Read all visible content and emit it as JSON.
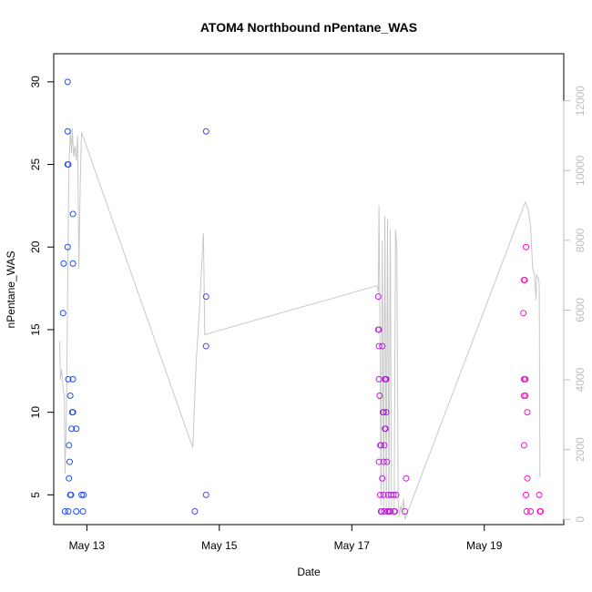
{
  "chart_data": {
    "type": "scatter",
    "title": "ATOM4 Northbound nPentane_WAS",
    "xlabel": "Date",
    "ylabel": "nPentane_WAS",
    "xlim_days": [
      12.5,
      20.2
    ],
    "ylim": [
      3.2,
      31.7
    ],
    "y2lim": [
      -150,
      13350
    ],
    "x_ticks": [
      {
        "value": 13,
        "label": "May 13"
      },
      {
        "value": 15,
        "label": "May 15"
      },
      {
        "value": 17,
        "label": "May 17"
      },
      {
        "value": 19,
        "label": "May 19"
      }
    ],
    "y_ticks": [
      5,
      10,
      15,
      20,
      25,
      30
    ],
    "y2_ticks": [
      0,
      2000,
      4000,
      6000,
      8000,
      10000,
      12000
    ],
    "colors": {
      "early": "#1f4ff5",
      "late": "#ff10c8",
      "line": "#c8c8c8"
    },
    "points": [
      {
        "x": 12.95,
        "y": 5
      },
      {
        "x": 12.64,
        "y": 16
      },
      {
        "x": 12.65,
        "y": 19
      },
      {
        "x": 12.67,
        "y": 4
      },
      {
        "x": 12.71,
        "y": 30
      },
      {
        "x": 12.71,
        "y": 27
      },
      {
        "x": 12.71,
        "y": 25
      },
      {
        "x": 12.72,
        "y": 25
      },
      {
        "x": 12.71,
        "y": 20
      },
      {
        "x": 12.72,
        "y": 12
      },
      {
        "x": 12.73,
        "y": 8
      },
      {
        "x": 12.73,
        "y": 6
      },
      {
        "x": 12.72,
        "y": 4
      },
      {
        "x": 12.74,
        "y": 7
      },
      {
        "x": 12.75,
        "y": 11
      },
      {
        "x": 12.75,
        "y": 5
      },
      {
        "x": 12.76,
        "y": 5
      },
      {
        "x": 12.77,
        "y": 9
      },
      {
        "x": 12.78,
        "y": 10
      },
      {
        "x": 12.79,
        "y": 10
      },
      {
        "x": 12.79,
        "y": 12
      },
      {
        "x": 12.79,
        "y": 22
      },
      {
        "x": 12.79,
        "y": 19
      },
      {
        "x": 12.84,
        "y": 9
      },
      {
        "x": 12.84,
        "y": 4
      },
      {
        "x": 12.92,
        "y": 5
      },
      {
        "x": 12.94,
        "y": 4
      },
      {
        "x": 14.63,
        "y": 4
      },
      {
        "x": 14.8,
        "y": 27
      },
      {
        "x": 14.8,
        "y": 17
      },
      {
        "x": 14.8,
        "y": 14
      },
      {
        "x": 14.8,
        "y": 5
      },
      {
        "x": 17.4,
        "y": 17
      },
      {
        "x": 17.4,
        "y": 15
      },
      {
        "x": 17.41,
        "y": 15
      },
      {
        "x": 17.41,
        "y": 14
      },
      {
        "x": 17.46,
        "y": 14
      },
      {
        "x": 17.41,
        "y": 12
      },
      {
        "x": 17.42,
        "y": 11
      },
      {
        "x": 17.41,
        "y": 7
      },
      {
        "x": 17.43,
        "y": 8
      },
      {
        "x": 17.44,
        "y": 8
      },
      {
        "x": 17.43,
        "y": 5
      },
      {
        "x": 17.44,
        "y": 4
      },
      {
        "x": 17.45,
        "y": 4
      },
      {
        "x": 17.46,
        "y": 6
      },
      {
        "x": 17.47,
        "y": 10
      },
      {
        "x": 17.48,
        "y": 10
      },
      {
        "x": 17.48,
        "y": 7
      },
      {
        "x": 17.48,
        "y": 5
      },
      {
        "x": 17.49,
        "y": 4
      },
      {
        "x": 17.5,
        "y": 9
      },
      {
        "x": 17.51,
        "y": 9
      },
      {
        "x": 17.49,
        "y": 8
      },
      {
        "x": 17.5,
        "y": 12
      },
      {
        "x": 17.51,
        "y": 12
      },
      {
        "x": 17.52,
        "y": 12
      },
      {
        "x": 17.52,
        "y": 10
      },
      {
        "x": 17.53,
        "y": 7
      },
      {
        "x": 17.54,
        "y": 4
      },
      {
        "x": 17.55,
        "y": 5
      },
      {
        "x": 17.56,
        "y": 4
      },
      {
        "x": 17.57,
        "y": 4
      },
      {
        "x": 17.58,
        "y": 4
      },
      {
        "x": 17.59,
        "y": 5
      },
      {
        "x": 17.63,
        "y": 5
      },
      {
        "x": 17.64,
        "y": 4
      },
      {
        "x": 17.65,
        "y": 4
      },
      {
        "x": 17.67,
        "y": 5
      },
      {
        "x": 17.8,
        "y": 4
      },
      {
        "x": 17.82,
        "y": 6
      },
      {
        "x": 19.59,
        "y": 16
      },
      {
        "x": 19.6,
        "y": 18
      },
      {
        "x": 19.61,
        "y": 18
      },
      {
        "x": 19.63,
        "y": 20
      },
      {
        "x": 19.6,
        "y": 12
      },
      {
        "x": 19.61,
        "y": 12
      },
      {
        "x": 19.62,
        "y": 12
      },
      {
        "x": 19.6,
        "y": 11
      },
      {
        "x": 19.62,
        "y": 11
      },
      {
        "x": 19.6,
        "y": 8
      },
      {
        "x": 19.63,
        "y": 5
      },
      {
        "x": 19.65,
        "y": 6
      },
      {
        "x": 19.64,
        "y": 4
      },
      {
        "x": 19.65,
        "y": 10
      },
      {
        "x": 19.7,
        "y": 4
      },
      {
        "x": 19.83,
        "y": 5
      },
      {
        "x": 19.84,
        "y": 4
      },
      {
        "x": 19.85,
        "y": 4
      }
    ],
    "line_series_y2": [
      [
        12.59,
        5100
      ],
      [
        12.6,
        4000
      ],
      [
        12.62,
        4300
      ],
      [
        12.64,
        3800
      ],
      [
        12.66,
        3500
      ],
      [
        12.67,
        1300
      ],
      [
        12.69,
        3000
      ],
      [
        12.7,
        4500
      ],
      [
        12.72,
        8500
      ],
      [
        12.73,
        10000
      ],
      [
        12.75,
        11200
      ],
      [
        12.77,
        10500
      ],
      [
        12.78,
        11200
      ],
      [
        12.8,
        10400
      ],
      [
        12.82,
        10700
      ],
      [
        12.84,
        10300
      ],
      [
        12.86,
        11000
      ],
      [
        12.88,
        7200
      ],
      [
        12.9,
        9600
      ],
      [
        12.92,
        11100
      ],
      [
        14.6,
        2050
      ],
      [
        14.65,
        4500
      ],
      [
        14.7,
        6000
      ],
      [
        14.74,
        7500
      ],
      [
        14.76,
        8200
      ],
      [
        14.78,
        5300
      ],
      [
        17.38,
        6700
      ],
      [
        17.4,
        6500
      ],
      [
        17.41,
        9000
      ],
      [
        17.42,
        7000
      ],
      [
        17.44,
        400
      ],
      [
        17.46,
        8000
      ],
      [
        17.48,
        300
      ],
      [
        17.5,
        8700
      ],
      [
        17.52,
        300
      ],
      [
        17.54,
        8600
      ],
      [
        17.56,
        200
      ],
      [
        17.58,
        8300
      ],
      [
        17.6,
        200
      ],
      [
        17.62,
        300
      ],
      [
        17.64,
        100
      ],
      [
        17.66,
        8300
      ],
      [
        17.68,
        7800
      ],
      [
        17.7,
        500
      ],
      [
        17.72,
        100
      ],
      [
        17.74,
        400
      ],
      [
        17.76,
        200
      ],
      [
        17.78,
        600
      ],
      [
        17.8,
        0
      ],
      [
        19.62,
        9100
      ],
      [
        19.66,
        8900
      ],
      [
        19.7,
        8400
      ],
      [
        19.73,
        7200
      ],
      [
        19.76,
        7000
      ],
      [
        19.78,
        6300
      ],
      [
        19.79,
        7000
      ],
      [
        19.82,
        6900
      ],
      [
        19.83,
        6700
      ],
      [
        19.84,
        1200
      ]
    ]
  }
}
